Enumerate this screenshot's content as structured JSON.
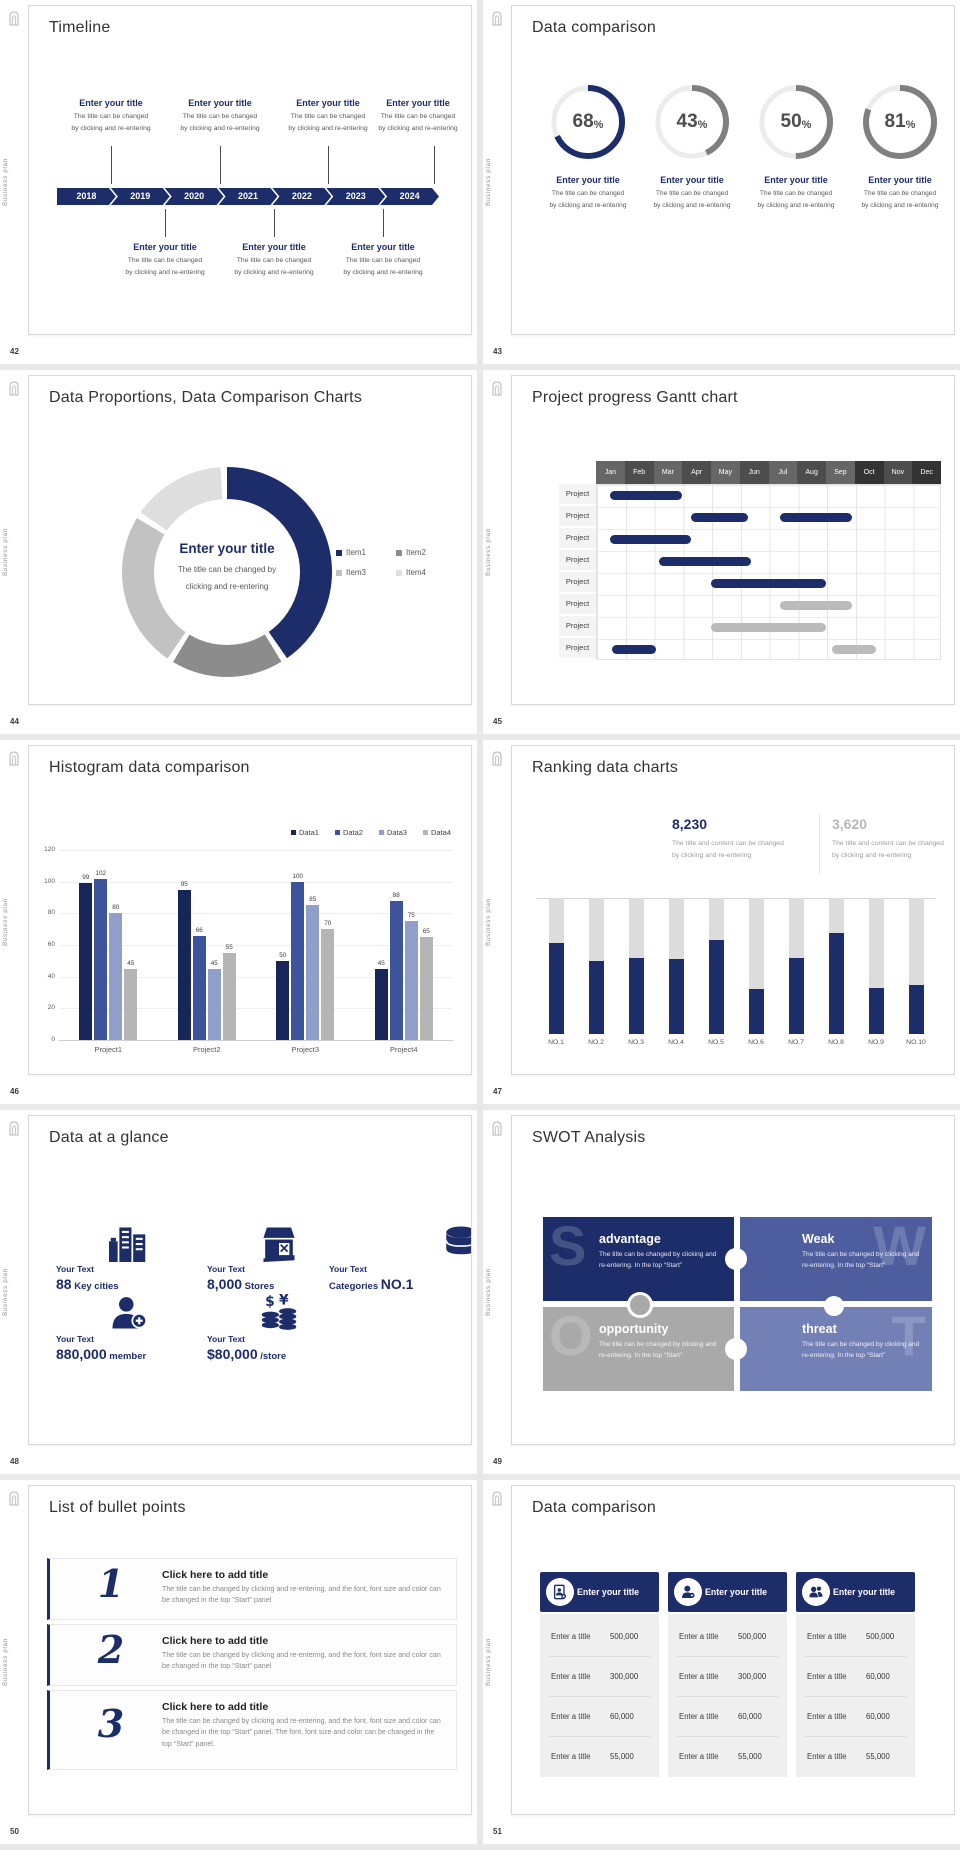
{
  "app": {
    "accent": "#1d2d69",
    "background": "#e8e8e8"
  },
  "common": {
    "vertical_label": "Business plan"
  },
  "slides": {
    "timeline": {
      "number": "42",
      "title": "Timeline",
      "years": [
        "2018",
        "2019",
        "2020",
        "2021",
        "2022",
        "2023",
        "2024"
      ],
      "item_title": "Enter your title",
      "caption_l1": "The title can be changed",
      "caption_l2": "by clicking and re-entering"
    },
    "rings": {
      "number": "43",
      "title": "Data comparison",
      "percent": "%",
      "item_title": "Enter your title",
      "caption_l1": "The title can be changed",
      "caption_l2": "by clicking and re-entering",
      "chart": {
        "type": "pie",
        "items": [
          {
            "value": "68",
            "pct": 68,
            "color": "#1d2d69"
          },
          {
            "value": "43",
            "pct": 43,
            "color": "#7f7f7f"
          },
          {
            "value": "50",
            "pct": 50,
            "color": "#7f7f7f"
          },
          {
            "value": "81",
            "pct": 81,
            "color": "#7f7f7f"
          }
        ],
        "track_color": "#ececec"
      }
    },
    "donut": {
      "number": "44",
      "title": "Data Proportions, Data Comparison Charts",
      "center_title": "Enter your title",
      "center_caption_l1": "The title can be changed by",
      "center_caption_l2": "clicking and re-entering",
      "legend": [
        {
          "label": "Item1",
          "color": "#1d2d69"
        },
        {
          "label": "Item2",
          "color": "#8c8c8c"
        },
        {
          "label": "Item3",
          "color": "#c2c2c2"
        },
        {
          "label": "Item4",
          "color": "#dedede"
        }
      ],
      "chart": {
        "type": "pie",
        "slices": [
          {
            "name": "Item1",
            "value": 42,
            "color": "#1d2d69"
          },
          {
            "name": "Item2",
            "value": 18,
            "color": "#8c8c8c"
          },
          {
            "name": "Item3",
            "value": 25,
            "color": "#c2c2c2"
          },
          {
            "name": "Item4",
            "value": 15,
            "color": "#dedede"
          }
        ]
      }
    },
    "gantt": {
      "number": "45",
      "title": "Project progress Gantt chart",
      "row_label": "Project",
      "row_count": 8,
      "months": [
        "Jan",
        "Feb",
        "Mar",
        "Apr",
        "May",
        "Jun",
        "Jul",
        "Aug",
        "Sep",
        "Oct",
        "Nov",
        "Dec"
      ],
      "month_colors": [
        "#666666",
        "#4d4d4d",
        "#666666",
        "#4d4d4d",
        "#666666",
        "#4d4d4d",
        "#666666",
        "#4d4d4d",
        "#666666",
        "#333333",
        "#4d4d4d",
        "#333333"
      ],
      "chart": {
        "type": "gantt",
        "bars": [
          {
            "row": 0,
            "start": 0.5,
            "end": 3.0,
            "color": "#1d2d69"
          },
          {
            "row": 1,
            "start": 3.3,
            "end": 5.3,
            "color": "#1d2d69"
          },
          {
            "row": 1,
            "start": 6.4,
            "end": 8.9,
            "color": "#1d2d69"
          },
          {
            "row": 2,
            "start": 0.5,
            "end": 3.3,
            "color": "#1d2d69"
          },
          {
            "row": 3,
            "start": 2.2,
            "end": 5.4,
            "color": "#1d2d69"
          },
          {
            "row": 4,
            "start": 4.0,
            "end": 8.0,
            "color": "#1d2d69"
          },
          {
            "row": 5,
            "start": 6.4,
            "end": 8.9,
            "color": "#bbbbbb"
          },
          {
            "row": 6,
            "start": 4.0,
            "end": 8.0,
            "color": "#bbbbbb"
          },
          {
            "row": 7,
            "start": 0.55,
            "end": 2.1,
            "color": "#1d2d69"
          },
          {
            "row": 7,
            "start": 8.2,
            "end": 9.75,
            "color": "#bbbbbb"
          }
        ]
      }
    },
    "histogram": {
      "number": "46",
      "title": "Histogram data comparison",
      "chart": {
        "type": "bar",
        "categories": [
          "Project1",
          "Project2",
          "Project3",
          "Project4"
        ],
        "series": [
          {
            "name": "Data1",
            "color": "#182559",
            "values": [
              99,
              95,
              50,
              45
            ]
          },
          {
            "name": "Data2",
            "color": "#3d549a",
            "values": [
              102,
              66,
              100,
              88
            ]
          },
          {
            "name": "Data3",
            "color": "#8f9fca",
            "values": [
              80,
              45,
              85,
              75
            ]
          },
          {
            "name": "Data4",
            "color": "#b5b5b5",
            "values": [
              45,
              55,
              70,
              65
            ]
          }
        ],
        "yticks": [
          0,
          20,
          40,
          60,
          80,
          100,
          120
        ],
        "ymax": 120
      }
    },
    "ranking": {
      "number": "47",
      "title": "Ranking data charts",
      "stats": [
        {
          "value": "8,230",
          "color": "#1d2d69",
          "caption_l1": "The title and content can be changed",
          "caption_l2": "by clicking and re-entering"
        },
        {
          "value": "3,620",
          "color": "#b7b7b7",
          "caption_l1": "The title and content can be changed",
          "caption_l2": "by clicking and re-entering"
        }
      ],
      "chart": {
        "type": "bar",
        "categories": [
          "NO.1",
          "NO.2",
          "NO.3",
          "NO.4",
          "NO.5",
          "NO.6",
          "NO.7",
          "NO.8",
          "NO.9",
          "NO.10"
        ],
        "values": [
          67,
          54,
          56,
          55,
          69,
          33,
          56,
          74,
          34,
          36
        ],
        "ymax": 100,
        "track_color": "#dcdcdc",
        "fill_color": "#1d2d69"
      }
    },
    "glance": {
      "number": "48",
      "title": "Data at a glance",
      "items": [
        {
          "label": "Your Text",
          "icon": "city-buildings-icon",
          "value_big": "88",
          "value_small": " Key cities",
          "big_first": true
        },
        {
          "label": "Your Text",
          "icon": "store-icon",
          "value_big": "8,000",
          "value_small": " Stores",
          "big_first": true
        },
        {
          "label": "Your Text",
          "icon": "database-icon",
          "value_big": "NO.1",
          "value_small": "Categories ",
          "big_first": false
        },
        {
          "label": "Your Text",
          "icon": "member-add-icon",
          "value_big": "880,000",
          "value_small": " member",
          "big_first": true
        },
        {
          "label": "Your Text",
          "icon": "coins-icon",
          "value_big": "$80,000",
          "value_small": " /store",
          "big_first": true
        }
      ]
    },
    "swot": {
      "number": "49",
      "title": "SWOT Analysis",
      "caption": "The title can be changed by clicking and re-entering. In the top “Start”",
      "quads": [
        {
          "letter": "S",
          "title": "advantage",
          "color": "#1d2d69"
        },
        {
          "letter": "W",
          "title": "Weak",
          "color": "#4d5d9e"
        },
        {
          "letter": "O",
          "title": "opportunity",
          "color": "#a9a9a9"
        },
        {
          "letter": "T",
          "title": "threat",
          "color": "#7280b5"
        }
      ]
    },
    "bullets": {
      "number": "50",
      "title": "List of bullet points",
      "items": [
        {
          "num": "1",
          "item_title": "Click here to add title",
          "body": "The title can be changed by clicking and re-entering, and the font, font size and color can be changed in the top “Start” panel"
        },
        {
          "num": "2",
          "item_title": "Click here to add title",
          "body": "The title can be changed by clicking and re-entering, and the font, font size and color can be changed in the top “Start” panel"
        },
        {
          "num": "3",
          "item_title": "Click here to add title",
          "body": "The title can be changed by clicking and re-entering, and the font, font size and color can be changed in the top “Start” panel. The font, font size and color can be changed in the top “Start” panel."
        }
      ]
    },
    "tables": {
      "number": "51",
      "title": "Data comparison",
      "cards": [
        {
          "icon": "id-badge-icon",
          "header": "Enter your title",
          "rows": [
            {
              "label": "Enter a title",
              "value": "500,000"
            },
            {
              "label": "Enter a title",
              "value": "300,000"
            },
            {
              "label": "Enter a title",
              "value": "60,000"
            },
            {
              "label": "Enter a title",
              "value": "55,000"
            }
          ]
        },
        {
          "icon": "person-add-icon",
          "header": "Enter your title",
          "rows": [
            {
              "label": "Enter a title",
              "value": "500,000"
            },
            {
              "label": "Enter a title",
              "value": "300,000"
            },
            {
              "label": "Enter a title",
              "value": "60,000"
            },
            {
              "label": "Enter a title",
              "value": "55,000"
            }
          ]
        },
        {
          "icon": "people-icon",
          "header": "Enter your title",
          "rows": [
            {
              "label": "Enter a title",
              "value": "500,000"
            },
            {
              "label": "Enter a title",
              "value": "60,000"
            },
            {
              "label": "Enter a title",
              "value": "60,000"
            },
            {
              "label": "Enter a title",
              "value": "55,000"
            }
          ]
        }
      ]
    }
  }
}
